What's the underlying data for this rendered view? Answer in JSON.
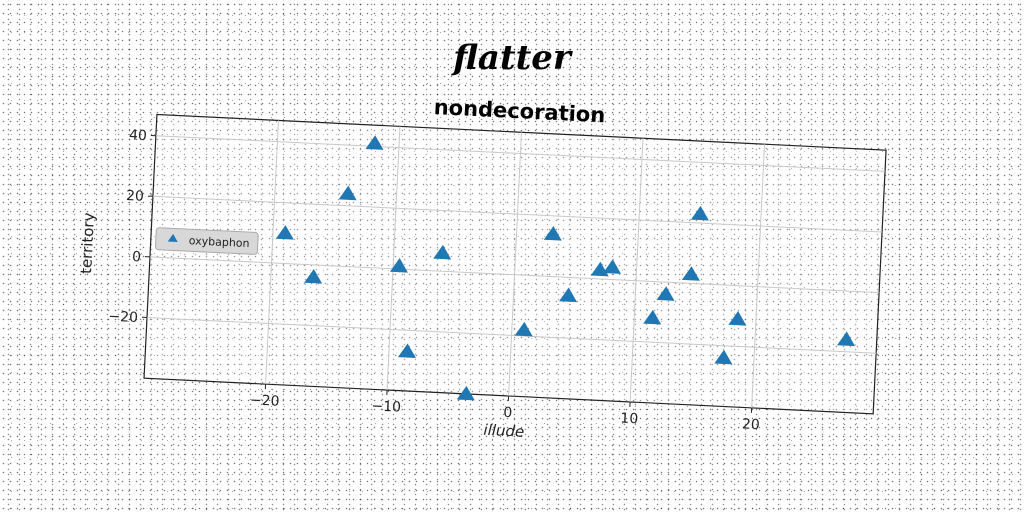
{
  "header": {
    "title": "flatter"
  },
  "chart_data": {
    "type": "scatter",
    "title": "nondecoration",
    "xlabel": "illude",
    "ylabel": "territory",
    "xlim": [
      -30,
      30
    ],
    "ylim": [
      -40,
      47
    ],
    "xticks": [
      -20,
      -10,
      0,
      10,
      20
    ],
    "yticks": [
      -20,
      0,
      20,
      40
    ],
    "xtick_labels": [
      "−20",
      "−10",
      "0",
      "10",
      "20"
    ],
    "ytick_labels": [
      "−20",
      "0",
      "20",
      "40"
    ],
    "grid": true,
    "legend": {
      "placement": "center-left",
      "entries": [
        "oxybaphon"
      ]
    },
    "series": [
      {
        "name": "oxybaphon",
        "marker": "triangle",
        "color": "#1f77b4",
        "points": [
          {
            "x": -12,
            "y": 41
          },
          {
            "x": -14,
            "y": 24
          },
          {
            "x": -19,
            "y": 10
          },
          {
            "x": -16.5,
            "y": -4
          },
          {
            "x": -9.5,
            "y": 1
          },
          {
            "x": -6,
            "y": 6
          },
          {
            "x": -8.5,
            "y": -27
          },
          {
            "x": -3.5,
            "y": -40
          },
          {
            "x": 1,
            "y": -18
          },
          {
            "x": 3,
            "y": 14
          },
          {
            "x": 4.5,
            "y": -6
          },
          {
            "x": 7,
            "y": 3
          },
          {
            "x": 8,
            "y": 4
          },
          {
            "x": 11.5,
            "y": -12
          },
          {
            "x": 12.5,
            "y": -4
          },
          {
            "x": 14.5,
            "y": 3
          },
          {
            "x": 15,
            "y": 23
          },
          {
            "x": 17.5,
            "y": -24
          },
          {
            "x": 18.5,
            "y": -11
          },
          {
            "x": 27.5,
            "y": -16
          }
        ]
      }
    ]
  }
}
